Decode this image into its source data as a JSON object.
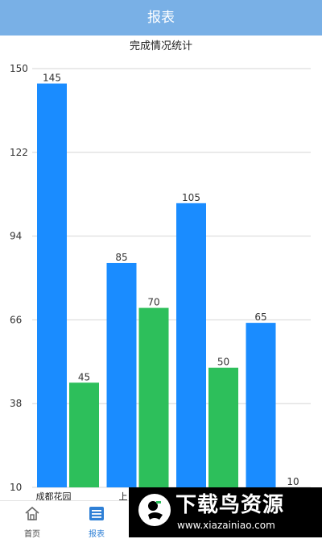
{
  "header": {
    "title": "报表"
  },
  "chart_data": {
    "type": "bar",
    "title": "完成情况统计",
    "categories": [
      "成都花园",
      "上",
      "",
      ""
    ],
    "series": [
      {
        "values": [
          145,
          85,
          105,
          65
        ],
        "color": "#1a8cff"
      },
      {
        "values": [
          45,
          70,
          50,
          10
        ],
        "color": "#2dbf5b"
      }
    ],
    "yticks": [
      10,
      38,
      66,
      94,
      122,
      150
    ],
    "ylim": [
      10,
      150
    ],
    "grid": true
  },
  "tabbar": {
    "items": [
      {
        "label": "首页",
        "icon": "home-icon"
      },
      {
        "label": "报表",
        "icon": "report-icon",
        "active": true
      }
    ]
  },
  "watermark": {
    "text": "下载鸟资源",
    "url": "www.xiazainiao.com"
  }
}
